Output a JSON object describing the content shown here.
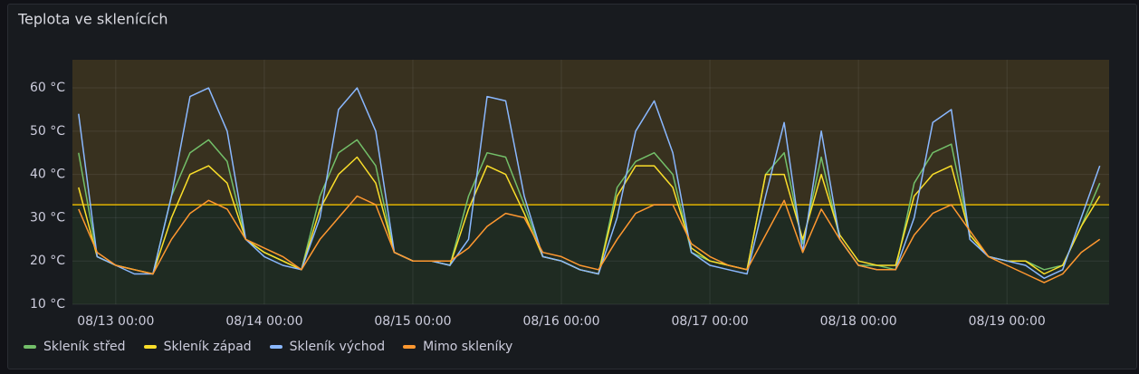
{
  "chart_data": {
    "type": "line",
    "title": "Teplota ve sklenících",
    "x": [
      "08/12 18:00",
      "08/12 21:00",
      "08/13 00:00",
      "08/13 03:00",
      "08/13 06:00",
      "08/13 09:00",
      "08/13 12:00",
      "08/13 15:00",
      "08/13 18:00",
      "08/13 21:00",
      "08/14 00:00",
      "08/14 03:00",
      "08/14 06:00",
      "08/14 09:00",
      "08/14 12:00",
      "08/14 15:00",
      "08/14 18:00",
      "08/14 21:00",
      "08/15 00:00",
      "08/15 03:00",
      "08/15 06:00",
      "08/15 09:00",
      "08/15 12:00",
      "08/15 15:00",
      "08/15 18:00",
      "08/15 21:00",
      "08/16 00:00",
      "08/16 03:00",
      "08/16 06:00",
      "08/16 09:00",
      "08/16 12:00",
      "08/16 15:00",
      "08/16 18:00",
      "08/16 21:00",
      "08/17 00:00",
      "08/17 03:00",
      "08/17 06:00",
      "08/17 09:00",
      "08/17 12:00",
      "08/17 15:00",
      "08/17 18:00",
      "08/17 21:00",
      "08/18 00:00",
      "08/18 03:00",
      "08/18 06:00",
      "08/18 09:00",
      "08/18 12:00",
      "08/18 15:00",
      "08/18 18:00",
      "08/18 21:00",
      "08/19 00:00",
      "08/19 03:00",
      "08/19 06:00",
      "08/19 09:00",
      "08/19 12:00",
      "08/19 15:00"
    ],
    "series": [
      {
        "name": "Skleník střed",
        "color": "#73bf69",
        "values": [
          45,
          21,
          19,
          18,
          17,
          35,
          45,
          48,
          43,
          25,
          22,
          20,
          18,
          35,
          45,
          48,
          42,
          22,
          20,
          20,
          19,
          35,
          45,
          44,
          33,
          21,
          20,
          18,
          17,
          37,
          43,
          45,
          40,
          22,
          20,
          19,
          18,
          40,
          45,
          24,
          44,
          25,
          19,
          19,
          18,
          38,
          45,
          47,
          26,
          21,
          20,
          20,
          18,
          19,
          28,
          38
        ]
      },
      {
        "name": "Skleník západ",
        "color": "#fade2a",
        "values": [
          37,
          21,
          19,
          18,
          17,
          30,
          40,
          42,
          38,
          25,
          22,
          20,
          18,
          32,
          40,
          44,
          38,
          22,
          20,
          20,
          19,
          32,
          42,
          40,
          31,
          21,
          20,
          18,
          17,
          35,
          42,
          42,
          37,
          23,
          20,
          19,
          18,
          40,
          40,
          25,
          40,
          26,
          20,
          19,
          19,
          35,
          40,
          42,
          26,
          21,
          20,
          20,
          17,
          19,
          28,
          35
        ]
      },
      {
        "name": "Skleník východ",
        "color": "#8ab8ff",
        "values": [
          54,
          21,
          19,
          17,
          17,
          35,
          58,
          60,
          50,
          25,
          21,
          19,
          18,
          30,
          55,
          60,
          50,
          22,
          20,
          20,
          19,
          25,
          58,
          57,
          35,
          21,
          20,
          18,
          17,
          30,
          50,
          57,
          45,
          22,
          19,
          18,
          17,
          35,
          52,
          22,
          50,
          25,
          19,
          18,
          18,
          30,
          52,
          55,
          25,
          21,
          20,
          19,
          16,
          18,
          30,
          42
        ]
      },
      {
        "name": "Mimo skleníky",
        "color": "#ff9830",
        "values": [
          32,
          22,
          19,
          18,
          17,
          25,
          31,
          34,
          32,
          25,
          23,
          21,
          18,
          25,
          30,
          35,
          33,
          22,
          20,
          20,
          20,
          23,
          28,
          31,
          30,
          22,
          21,
          19,
          18,
          25,
          31,
          33,
          33,
          24,
          21,
          19,
          18,
          26,
          34,
          22,
          32,
          25,
          19,
          18,
          18,
          26,
          31,
          33,
          27,
          21,
          19,
          17,
          15,
          17,
          22,
          25
        ]
      }
    ],
    "xlim": [
      "08/12 17:00",
      "08/19 16:30"
    ],
    "xticks": [
      "08/13 00:00",
      "08/14 00:00",
      "08/15 00:00",
      "08/16 00:00",
      "08/17 00:00",
      "08/18 00:00",
      "08/19 00:00"
    ],
    "ylim": [
      10,
      66.5
    ],
    "yticks": [
      {
        "value": 10,
        "label": "10 °C"
      },
      {
        "value": 20,
        "label": "20 °C"
      },
      {
        "value": 30,
        "label": "30 °C"
      },
      {
        "value": 40,
        "label": "40 °C"
      },
      {
        "value": 50,
        "label": "50 °C"
      },
      {
        "value": 60,
        "label": "60 °C"
      }
    ],
    "threshold": 33,
    "threshold_color": "#e0b400",
    "grid": true
  }
}
